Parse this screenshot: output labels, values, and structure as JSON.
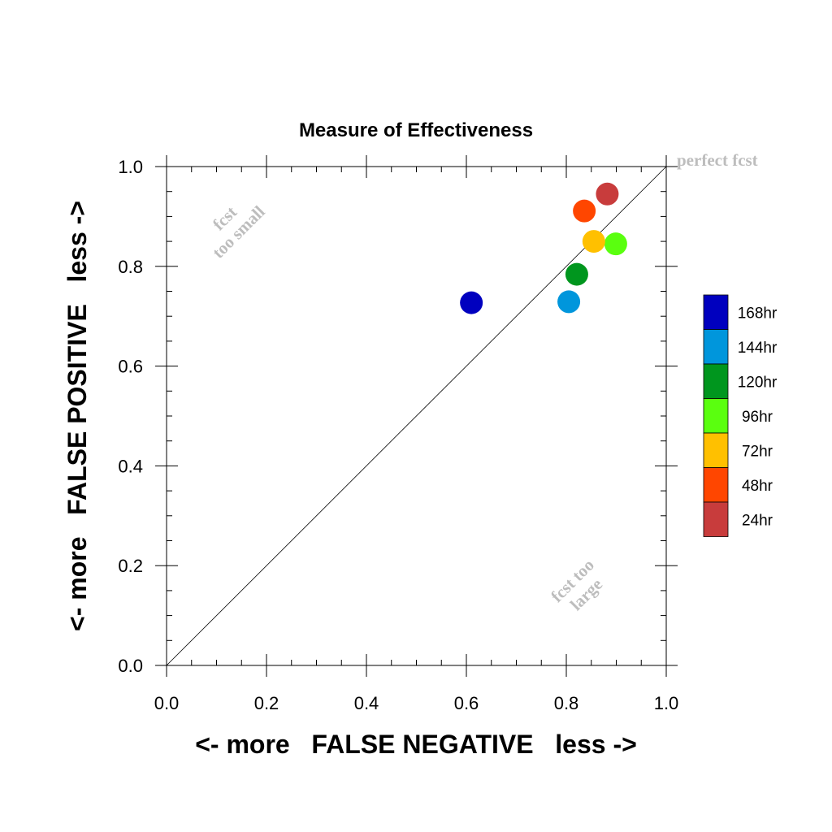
{
  "chart_data": {
    "type": "scatter",
    "title": "Measure of Effectiveness",
    "xlabel": "<- more   FALSE NEGATIVE   less ->",
    "ylabel": "<- more   FALSE POSITIVE   less ->",
    "xlim": [
      0.0,
      1.0
    ],
    "ylim": [
      0.0,
      1.0
    ],
    "xticks": [
      "0.0",
      "0.2",
      "0.4",
      "0.6",
      "0.8",
      "1.0"
    ],
    "yticks": [
      "0.0",
      "0.2",
      "0.4",
      "0.6",
      "0.8",
      "1.0"
    ],
    "grid": false,
    "reference_line": "diagonal y = x",
    "annotations": {
      "perfect": "perfect fcst",
      "too_small_1": "fcst",
      "too_small_2": "too small",
      "too_large_1": "fcst too",
      "too_large_2": "large"
    },
    "legend_position": "right",
    "series": [
      {
        "name": "168hr",
        "color": "#0000bf",
        "x": 0.61,
        "y": 0.727
      },
      {
        "name": "144hr",
        "color": "#0096dc",
        "x": 0.805,
        "y": 0.729
      },
      {
        "name": "120hr",
        "color": "#00961e",
        "x": 0.821,
        "y": 0.784
      },
      {
        "name": "96hr",
        "color": "#5aff0f",
        "x": 0.899,
        "y": 0.845
      },
      {
        "name": "72hr",
        "color": "#ffc000",
        "x": 0.855,
        "y": 0.85
      },
      {
        "name": "48hr",
        "color": "#ff4600",
        "x": 0.836,
        "y": 0.911
      },
      {
        "name": "24hr",
        "color": "#c83c3c",
        "x": 0.882,
        "y": 0.945
      }
    ]
  }
}
